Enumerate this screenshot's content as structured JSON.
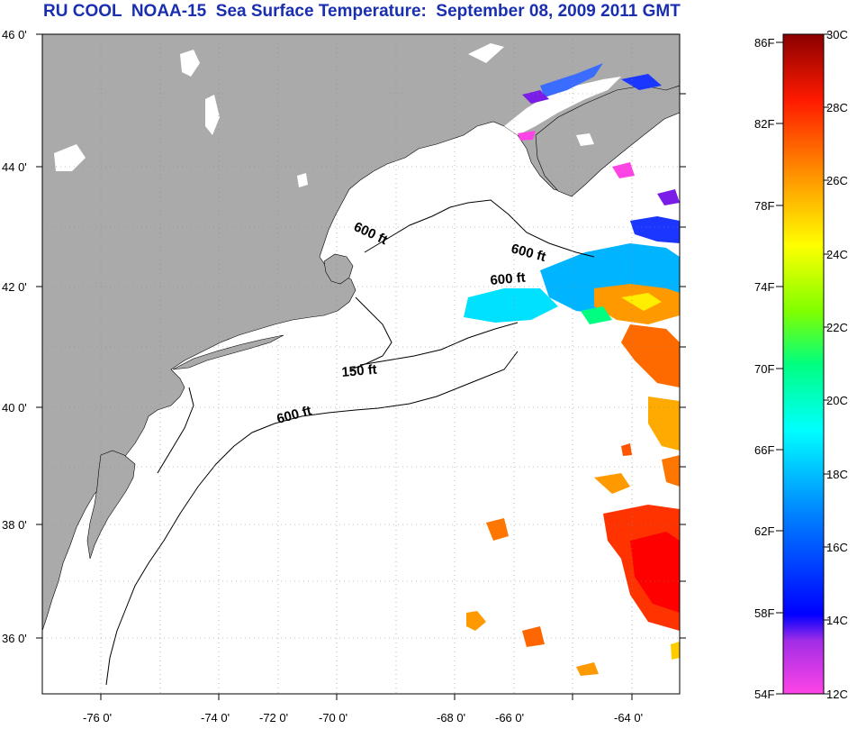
{
  "title": "RU COOL  NOAA-15  Sea Surface Temperature:  September 08, 2009 2011 GMT",
  "map": {
    "lat_labels": [
      "46 0'",
      "44 0'",
      "42 0'",
      "40 0'",
      "38 0'",
      "36 0'"
    ],
    "lon_labels": [
      "-76 0'",
      "-74 0'",
      "-72 0'",
      "-70 0'",
      "-68 0'",
      "-66 0'",
      "-64 0'"
    ],
    "contour_labels": [
      "600 ft",
      "600 ft",
      "600 ft",
      "150 ft",
      "600 ft"
    ],
    "land_color": "#aaaaaa",
    "water_color": "#ffffff",
    "cloud_masked": true
  },
  "colorbar": {
    "fahrenheit_labels": [
      "86F",
      "82F",
      "78F",
      "74F",
      "70F",
      "66F",
      "62F",
      "58F",
      "54F"
    ],
    "celsius_labels": [
      "30C",
      "28C",
      "26C",
      "24C",
      "22C",
      "20C",
      "18C",
      "16C",
      "14C",
      "12C"
    ],
    "celsius_range": [
      12,
      30
    ],
    "fahrenheit_range": [
      54,
      86
    ],
    "colors_low_to_high": [
      "#ff44e6",
      "#7a1de6",
      "#0000ff",
      "#00a0ff",
      "#00ffff",
      "#00ff80",
      "#ffff00",
      "#ff9900",
      "#ff2200",
      "#8b0000"
    ]
  }
}
